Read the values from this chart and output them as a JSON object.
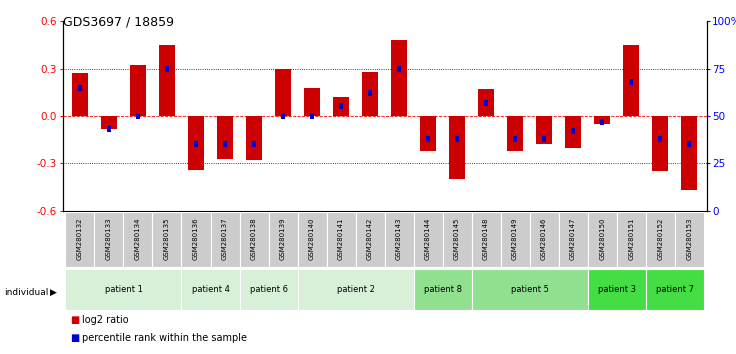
{
  "title": "GDS3697 / 18859",
  "samples": [
    "GSM280132",
    "GSM280133",
    "GSM280134",
    "GSM280135",
    "GSM280136",
    "GSM280137",
    "GSM280138",
    "GSM280139",
    "GSM280140",
    "GSM280141",
    "GSM280142",
    "GSM280143",
    "GSM280144",
    "GSM280145",
    "GSM280148",
    "GSM280149",
    "GSM280146",
    "GSM280147",
    "GSM280150",
    "GSM280151",
    "GSM280152",
    "GSM280153"
  ],
  "log2": [
    0.27,
    -0.08,
    0.32,
    0.45,
    -0.34,
    -0.27,
    -0.28,
    0.3,
    0.18,
    0.12,
    0.28,
    0.48,
    -0.22,
    -0.4,
    0.17,
    -0.22,
    -0.18,
    -0.2,
    -0.05,
    0.45,
    -0.35,
    -0.47
  ],
  "percentile": [
    65,
    43,
    50,
    75,
    35,
    35,
    35,
    50,
    50,
    55,
    62,
    75,
    38,
    38,
    57,
    38,
    38,
    42,
    47,
    68,
    38,
    35
  ],
  "patient_groups": [
    {
      "label": "patient 1",
      "start": 0,
      "end": 3,
      "color": "#d8f0d8"
    },
    {
      "label": "patient 4",
      "start": 4,
      "end": 5,
      "color": "#d8f0d8"
    },
    {
      "label": "patient 6",
      "start": 6,
      "end": 7,
      "color": "#d8f0d8"
    },
    {
      "label": "patient 2",
      "start": 8,
      "end": 11,
      "color": "#d8f0d8"
    },
    {
      "label": "patient 8",
      "start": 12,
      "end": 13,
      "color": "#90e090"
    },
    {
      "label": "patient 5",
      "start": 14,
      "end": 17,
      "color": "#90e090"
    },
    {
      "label": "patient 3",
      "start": 18,
      "end": 19,
      "color": "#44dd44"
    },
    {
      "label": "patient 7",
      "start": 20,
      "end": 21,
      "color": "#44dd44"
    }
  ],
  "ylim": [
    -0.6,
    0.6
  ],
  "yticks_left": [
    -0.6,
    -0.3,
    0.0,
    0.3,
    0.6
  ],
  "yticks_right_vals": [
    0,
    25,
    50,
    75,
    100
  ],
  "yticks_right_labels": [
    "0",
    "25",
    "50",
    "75",
    "100%"
  ],
  "bar_color": "#cc0000",
  "marker_color": "#0000cc",
  "legend_log2": "log2 ratio",
  "legend_pct": "percentile rank within the sample",
  "sample_box_color": "#cccccc"
}
